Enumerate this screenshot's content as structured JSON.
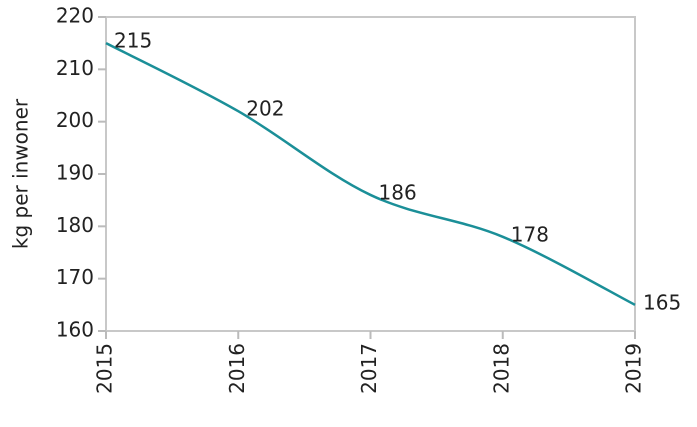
{
  "chart_data": {
    "type": "line",
    "y_label": "kg per inwoner",
    "x": [
      2015,
      2016,
      2017,
      2018,
      2019
    ],
    "series": [
      {
        "name": "kg per inwoner",
        "color": "#1b8f98",
        "values": [
          215,
          202,
          186,
          178,
          165
        ]
      }
    ],
    "xlim": [
      2015,
      2019
    ],
    "xticks": [
      2015,
      2016,
      2017,
      2018,
      2019
    ],
    "ylim": [
      160,
      220
    ],
    "yticks": [
      160,
      170,
      180,
      190,
      200,
      210,
      220
    ],
    "data_labels": true
  }
}
